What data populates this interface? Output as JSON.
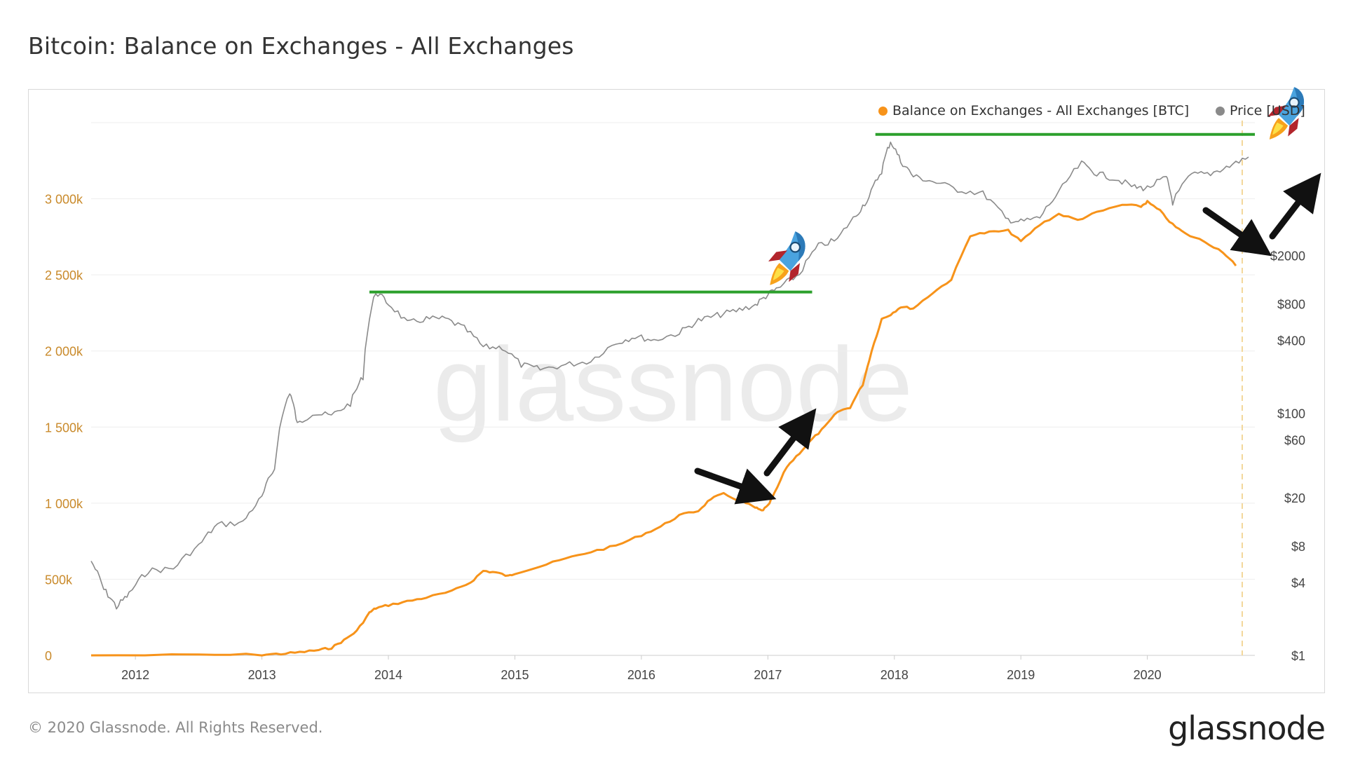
{
  "title": "Bitcoin: Balance on Exchanges - All Exchanges",
  "footer": {
    "copyright": "© 2020 Glassnode. All Rights Reserved.",
    "brand": "glassnode"
  },
  "watermark": "glassnode",
  "colors": {
    "balance": "#f7931a",
    "price": "#8a8a8a",
    "resistance": "#2ca02c",
    "arrow": "#111111",
    "grid": "#eeeeee"
  },
  "legend": {
    "balance_label": "Balance on Exchanges - All Exchanges [BTC]",
    "price_label": "Price [USD]"
  },
  "annotations": {
    "icons": [
      "rocket-icon",
      "rocket-icon"
    ],
    "arrows": [
      "down-arrow-icon",
      "up-arrow-icon",
      "down-arrow-icon",
      "up-arrow-icon"
    ],
    "resistance_lines": 2
  },
  "chart_data": {
    "type": "line",
    "x_range": [
      2011.65,
      2020.85
    ],
    "x_ticks": [
      2012,
      2013,
      2014,
      2015,
      2016,
      2017,
      2018,
      2019,
      2020
    ],
    "x_tick_labels": [
      "2012",
      "2013",
      "2014",
      "2015",
      "2016",
      "2017",
      "2018",
      "2019",
      "2020"
    ],
    "y_left": {
      "range": [
        0,
        3500
      ],
      "unit": "k BTC",
      "ticks": [
        0,
        500,
        1000,
        1500,
        2000,
        2500,
        3000
      ],
      "tick_labels": [
        "0",
        "500k",
        "1 000k",
        "1 500k",
        "2 000k",
        "2 500k",
        "3 000k"
      ]
    },
    "y_right": {
      "scale": "log",
      "ticks": [
        1,
        4,
        8,
        20,
        60,
        100,
        400,
        800,
        2000
      ],
      "tick_labels": [
        "$1",
        "$4",
        "$8",
        "$20",
        "$60",
        "$100",
        "$400",
        "$800",
        "$2000"
      ]
    },
    "series": [
      {
        "name": "Balance on Exchanges - All Exchanges [BTC]",
        "axis": "left",
        "x": [
          2011.65,
          2012.5,
          2013.0,
          2013.15,
          2013.3,
          2013.45,
          2013.55,
          2013.65,
          2013.75,
          2013.85,
          2013.9,
          2014.0,
          2014.15,
          2014.3,
          2014.5,
          2014.65,
          2014.75,
          2014.85,
          2014.95,
          2015.0,
          2015.2,
          2015.4,
          2015.6,
          2015.8,
          2016.0,
          2016.15,
          2016.3,
          2016.45,
          2016.55,
          2016.65,
          2016.8,
          2016.9,
          2016.95,
          2017.0,
          2017.05,
          2017.15,
          2017.25,
          2017.35,
          2017.45,
          2017.55,
          2017.65,
          2017.75,
          2017.82,
          2017.9,
          2017.97,
          2018.05,
          2018.15,
          2018.3,
          2018.45,
          2018.6,
          2018.75,
          2018.9,
          2019.0,
          2019.15,
          2019.3,
          2019.45,
          2019.6,
          2019.8,
          2019.95,
          2020.0,
          2020.1,
          2020.2,
          2020.3,
          2020.45,
          2020.6,
          2020.7
        ],
        "y": [
          0,
          2,
          5,
          10,
          20,
          35,
          50,
          100,
          160,
          280,
          310,
          330,
          355,
          380,
          420,
          480,
          555,
          545,
          520,
          540,
          585,
          635,
          680,
          720,
          790,
          845,
          920,
          950,
          1030,
          1060,
          1010,
          970,
          950,
          980,
          1060,
          1240,
          1330,
          1420,
          1500,
          1600,
          1630,
          1780,
          2000,
          2210,
          2240,
          2290,
          2280,
          2380,
          2470,
          2760,
          2780,
          2790,
          2720,
          2830,
          2900,
          2860,
          2910,
          2960,
          2950,
          2980,
          2920,
          2830,
          2770,
          2720,
          2650,
          2560
        ]
      },
      {
        "name": "Price [USD]",
        "axis": "right",
        "x": [
          2011.65,
          2011.75,
          2011.85,
          2011.95,
          2012.1,
          2012.3,
          2012.5,
          2012.65,
          2012.85,
          2013.0,
          2013.1,
          2013.22,
          2013.28,
          2013.4,
          2013.55,
          2013.7,
          2013.8,
          2013.9,
          2014.0,
          2014.15,
          2014.3,
          2014.45,
          2014.6,
          2014.75,
          2014.9,
          2015.05,
          2015.2,
          2015.4,
          2015.6,
          2015.8,
          2015.95,
          2016.1,
          2016.3,
          2016.45,
          2016.6,
          2016.75,
          2016.9,
          2017.0,
          2017.1,
          2017.25,
          2017.4,
          2017.55,
          2017.7,
          2017.8,
          2017.9,
          2017.97,
          2018.05,
          2018.15,
          2018.3,
          2018.5,
          2018.7,
          2018.88,
          2019.0,
          2019.15,
          2019.3,
          2019.48,
          2019.6,
          2019.75,
          2019.9,
          2020.0,
          2020.15,
          2020.2,
          2020.35,
          2020.5,
          2020.65,
          2020.8
        ],
        "y": [
          6,
          3.5,
          2.5,
          3.2,
          5,
          5.2,
          8,
          12,
          12.5,
          20,
          35,
          150,
          80,
          100,
          95,
          120,
          200,
          1000,
          800,
          550,
          600,
          600,
          500,
          350,
          350,
          250,
          230,
          250,
          270,
          380,
          430,
          400,
          460,
          580,
          640,
          700,
          780,
          950,
          1100,
          1400,
          2400,
          2700,
          4300,
          6000,
          10000,
          17500,
          12000,
          9000,
          8200,
          7000,
          6500,
          4000,
          3800,
          4100,
          6500,
          11500,
          9500,
          8600,
          7300,
          7200,
          8800,
          5500,
          9300,
          9500,
          11000,
          13000
        ]
      }
    ],
    "resistance_levels": [
      {
        "x_start": 2013.85,
        "x_end": 2017.35,
        "price": 1000
      },
      {
        "x_start": 2017.85,
        "x_end": 2020.85,
        "price": 20000
      }
    ],
    "marker_date": 2020.75
  }
}
